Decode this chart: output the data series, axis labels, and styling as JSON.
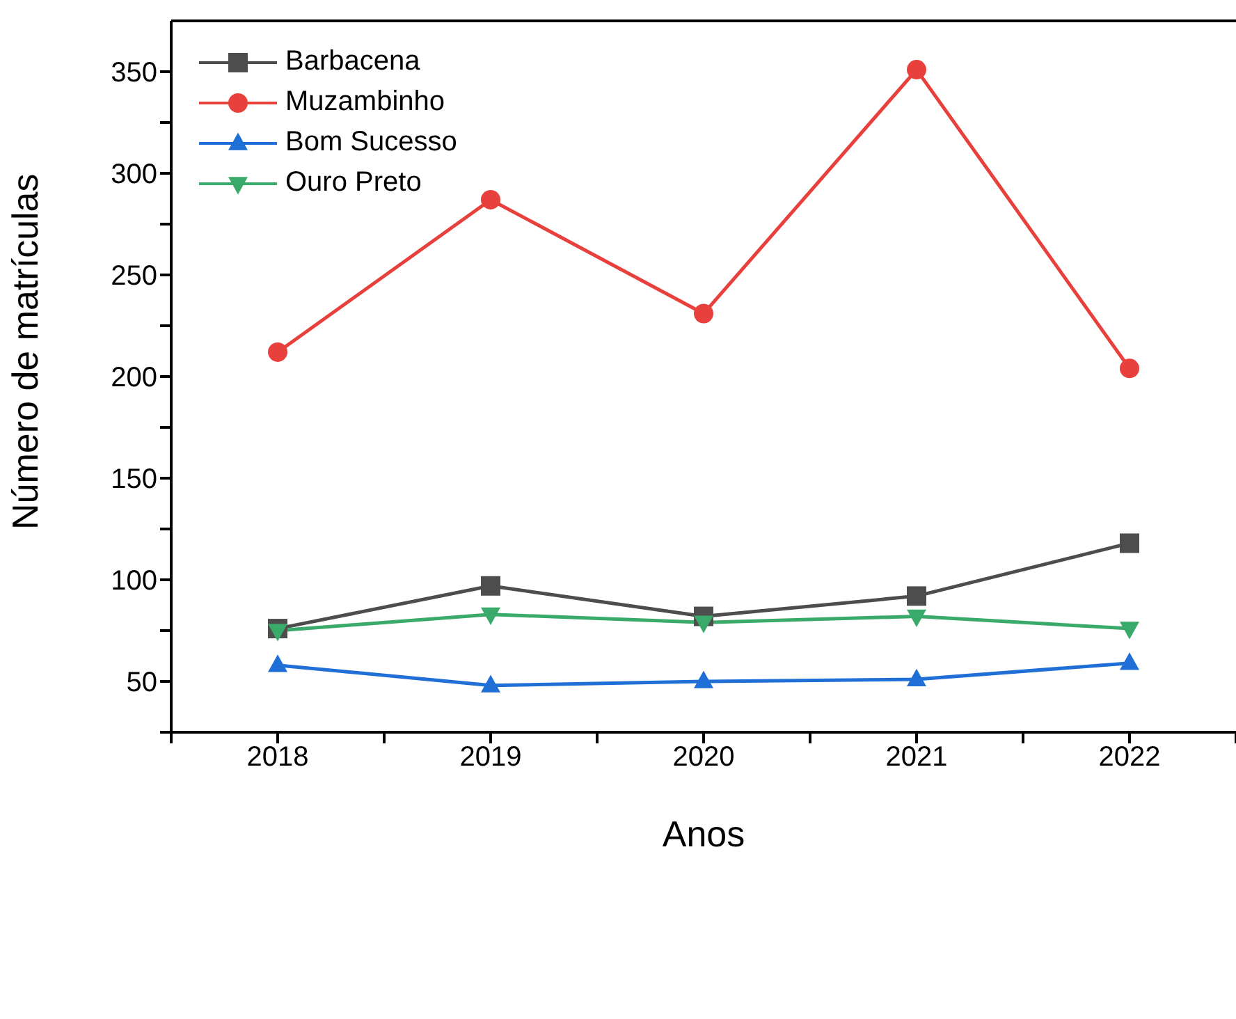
{
  "chart_data": {
    "type": "line",
    "xlabel": "Anos",
    "ylabel": "Número de matrículas",
    "x": [
      2018,
      2019,
      2020,
      2021,
      2022
    ],
    "series": [
      {
        "name": "Barbacena",
        "color": "#4d4d4d",
        "marker": "square",
        "values": [
          76,
          97,
          82,
          92,
          118
        ]
      },
      {
        "name": "Muzambinho",
        "color": "#e8413d",
        "marker": "circle",
        "values": [
          212,
          287,
          231,
          351,
          204
        ]
      },
      {
        "name": "Bom Sucesso",
        "color": "#1f6fd6",
        "marker": "triangle",
        "values": [
          58,
          48,
          50,
          51,
          59
        ]
      },
      {
        "name": "Ouro Preto",
        "color": "#3aaa6a",
        "marker": "triangle-down",
        "values": [
          75,
          83,
          79,
          82,
          76
        ]
      }
    ],
    "xlim": [
      2017.5,
      2022.5
    ],
    "xticks": [
      {
        "value": 2017.5,
        "label": null
      },
      2018,
      {
        "value": 2018.5,
        "label": null
      },
      2019,
      {
        "value": 2019.5,
        "label": null
      },
      2020,
      {
        "value": 2020.5,
        "label": null
      },
      2021,
      {
        "value": 2021.5,
        "label": null
      },
      2022,
      {
        "value": 2022.5,
        "label": null
      }
    ],
    "ylim": [
      25,
      375
    ],
    "yticks": [
      {
        "value": 25,
        "label": null
      },
      50,
      {
        "value": 75,
        "label": null
      },
      100,
      {
        "value": 125,
        "label": null
      },
      150,
      {
        "value": 175,
        "label": null
      },
      200,
      {
        "value": 225,
        "label": null
      },
      250,
      {
        "value": 275,
        "label": null
      },
      300,
      {
        "value": 325,
        "label": null
      },
      350
    ],
    "grid": false,
    "legend": "top left",
    "line_style": "solid"
  }
}
